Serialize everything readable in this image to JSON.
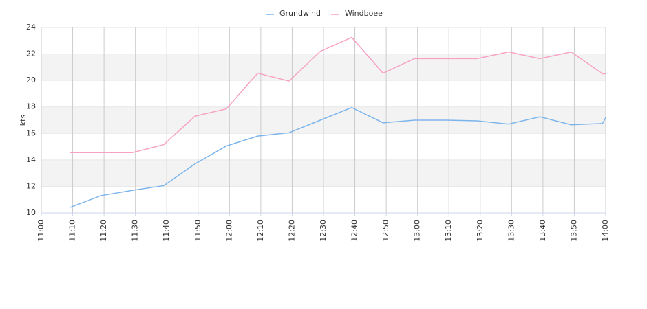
{
  "chart_data": {
    "type": "line",
    "y_label": "kts",
    "x": [
      669,
      679,
      689,
      699,
      709,
      719,
      729,
      739,
      749,
      759,
      769,
      779,
      789,
      799,
      809,
      819,
      829,
      839,
      840
    ],
    "series": [
      {
        "name": "Grundwind",
        "color": "#7cb5ec",
        "values": [
          10.4,
          11.3,
          11.7,
          12.05,
          13.7,
          15.05,
          15.8,
          16.05,
          17.0,
          17.95,
          16.8,
          17.0,
          17.0,
          16.95,
          16.7,
          17.25,
          16.65,
          16.75,
          17.2
        ]
      },
      {
        "name": "Windboee",
        "color": "#f7a1c4",
        "values": [
          14.55,
          14.55,
          14.55,
          15.15,
          17.3,
          17.85,
          20.55,
          19.95,
          22.2,
          23.25,
          20.55,
          21.65,
          21.65,
          21.65,
          22.15,
          21.65,
          22.15,
          20.5,
          20.5
        ]
      }
    ],
    "xlim": [
      660,
      840
    ],
    "xticks": [
      {
        "value": 660,
        "label": "11:00"
      },
      {
        "value": 670,
        "label": "11:10"
      },
      {
        "value": 680,
        "label": "11:20"
      },
      {
        "value": 690,
        "label": "11:30"
      },
      {
        "value": 700,
        "label": "11:40"
      },
      {
        "value": 710,
        "label": "11:50"
      },
      {
        "value": 720,
        "label": "12:00"
      },
      {
        "value": 730,
        "label": "12:10"
      },
      {
        "value": 740,
        "label": "12:20"
      },
      {
        "value": 750,
        "label": "12:30"
      },
      {
        "value": 760,
        "label": "12:40"
      },
      {
        "value": 770,
        "label": "12:50"
      },
      {
        "value": 780,
        "label": "13:00"
      },
      {
        "value": 790,
        "label": "13:10"
      },
      {
        "value": 800,
        "label": "13:20"
      },
      {
        "value": 810,
        "label": "13:30"
      },
      {
        "value": 820,
        "label": "13:40"
      },
      {
        "value": 830,
        "label": "13:50"
      },
      {
        "value": 840,
        "label": "14:00"
      }
    ],
    "ylim": [
      10,
      24
    ],
    "yticks": [
      10,
      12,
      14,
      16,
      18,
      20,
      22,
      24
    ],
    "grid": true,
    "legend": "top"
  }
}
